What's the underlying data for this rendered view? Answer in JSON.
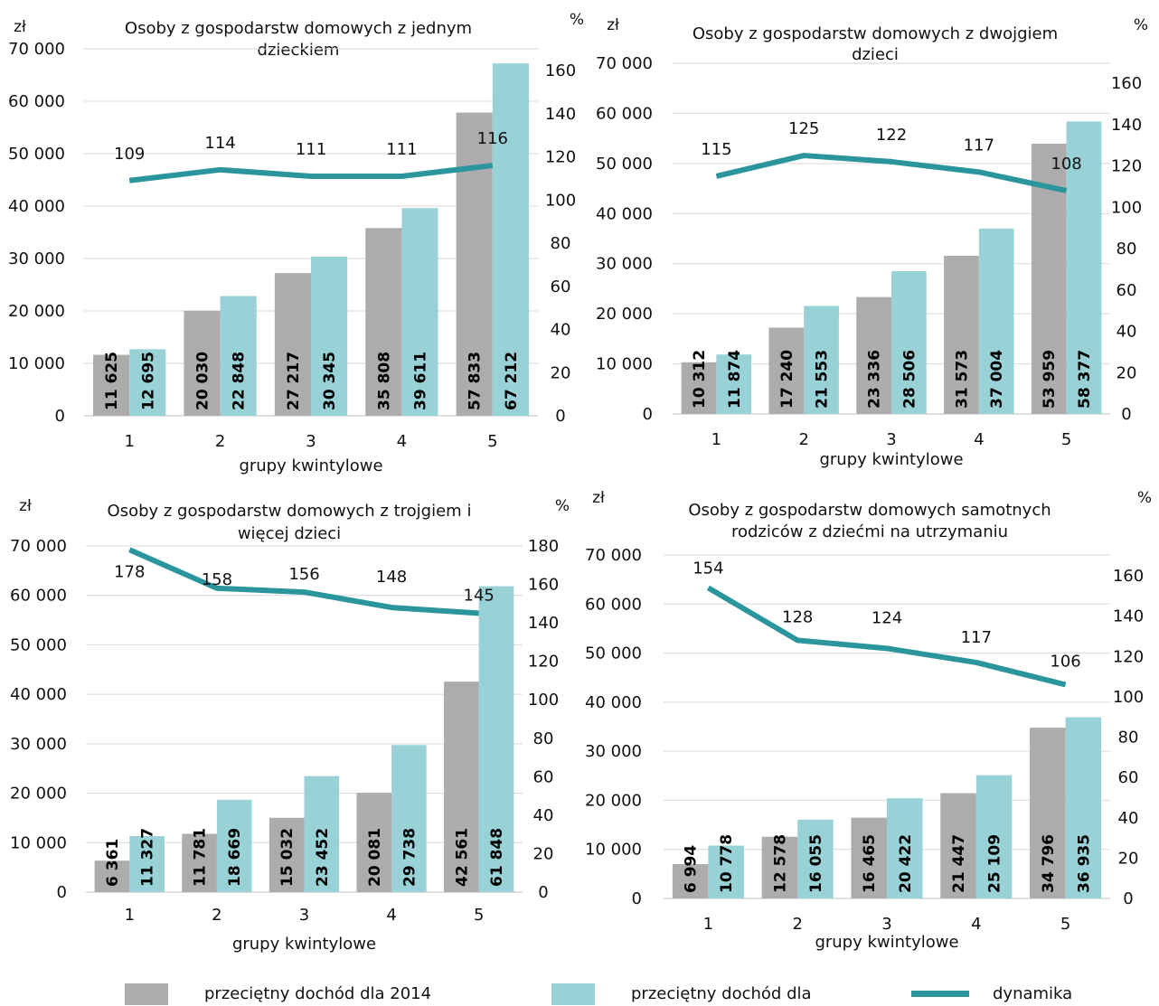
{
  "colors": {
    "income_2014": "#aeabad",
    "income_2018": "#99d2d6",
    "dynamics": "#2a959c",
    "grid": "#d9d9d9",
    "text": "#111111"
  },
  "legend": {
    "income_2014": "przeciętny dochód dla 2014",
    "income_2018": "przeciętny dochód dla",
    "dynamics": "dynamika"
  },
  "chart_data": [
    {
      "type": "bar",
      "title_line1": "Osoby z gospodarstw domowych z jednym",
      "title_line2": "dzieckiem",
      "y_unit_left": "zł",
      "y_unit_right": "%",
      "xlabel": "grupy kwintylowe",
      "categories": [
        "1",
        "2",
        "3",
        "4",
        "5"
      ],
      "ylim": [
        0,
        70000
      ],
      "y2lim": [
        0,
        160
      ],
      "y_ticks": [
        "0",
        "10 000",
        "20 000",
        "30 000",
        "40 000",
        "50 000",
        "60 000",
        "70 000"
      ],
      "y2_ticks": [
        "0",
        "20",
        "40",
        "60",
        "80",
        "100",
        "120",
        "140",
        "160"
      ],
      "series": [
        {
          "values": [
            11625,
            20030,
            27217,
            35808,
            57833
          ],
          "labels": [
            "11 625",
            "20 030",
            "27 217",
            "35 808",
            "57 833"
          ]
        },
        {
          "values": [
            12695,
            22848,
            30345,
            39611,
            67212
          ],
          "labels": [
            "12 695",
            "22 848",
            "30 345",
            "39 611",
            "67 212"
          ]
        }
      ],
      "dynamics": [
        109,
        114,
        111,
        111,
        116
      ]
    },
    {
      "type": "bar",
      "title_line1": "Osoby z gospodarstw domowych z dwojgiem",
      "title_line2": "dzieci",
      "y_unit_left": "zł",
      "y_unit_right": "%",
      "xlabel": "grupy kwintylowe",
      "categories": [
        "1",
        "2",
        "3",
        "4",
        "5"
      ],
      "ylim": [
        0,
        70000
      ],
      "y2lim": [
        0,
        160
      ],
      "y_ticks": [
        "0",
        "10 000",
        "20 000",
        "30 000",
        "40 000",
        "50 000",
        "60 000",
        "70 000"
      ],
      "y2_ticks": [
        "0",
        "20",
        "40",
        "60",
        "80",
        "100",
        "120",
        "140",
        "160"
      ],
      "series": [
        {
          "values": [
            10312,
            17240,
            23336,
            31573,
            53959
          ],
          "labels": [
            "10 312",
            "17 240",
            "23 336",
            "31 573",
            "53 959"
          ]
        },
        {
          "values": [
            11874,
            21553,
            28506,
            37004,
            58377
          ],
          "labels": [
            "11 874",
            "21 553",
            "28 506",
            "37 004",
            "58 377"
          ]
        }
      ],
      "dynamics": [
        115,
        125,
        122,
        117,
        108
      ]
    },
    {
      "type": "bar",
      "title_line1": "Osoby z gospodarstw domowych z trojgiem i",
      "title_line2": "więcej dzieci",
      "y_unit_left": "zł",
      "y_unit_right": "%",
      "xlabel": "grupy kwintylowe",
      "categories": [
        "1",
        "2",
        "3",
        "4",
        "5"
      ],
      "ylim": [
        0,
        70000
      ],
      "y2lim": [
        0,
        180
      ],
      "y_ticks": [
        "0",
        "10 000",
        "20 000",
        "30 000",
        "40 000",
        "50 000",
        "60 000",
        "70 000"
      ],
      "y2_ticks": [
        "0",
        "20",
        "40",
        "60",
        "80",
        "100",
        "120",
        "140",
        "160",
        "180"
      ],
      "series": [
        {
          "values": [
            6361,
            11781,
            15032,
            20081,
            42561
          ],
          "labels": [
            "6 361",
            "11 781",
            "15 032",
            "20 081",
            "42 561"
          ]
        },
        {
          "values": [
            11327,
            18669,
            23452,
            29738,
            61848
          ],
          "labels": [
            "11 327",
            "18 669",
            "23 452",
            "29 738",
            "61 848"
          ]
        }
      ],
      "dynamics": [
        178,
        158,
        156,
        148,
        145
      ]
    },
    {
      "type": "bar",
      "title_line1": "Osoby z gospodarstw domowych samotnych",
      "title_line2": "rodziców z dziećmi na utrzymaniu",
      "y_unit_left": "zł",
      "y_unit_right": "%",
      "xlabel": "grupy kwintylowe",
      "categories": [
        "1",
        "2",
        "3",
        "4",
        "5"
      ],
      "ylim": [
        0,
        70000
      ],
      "y2lim": [
        0,
        160
      ],
      "y_ticks": [
        "0",
        "10 000",
        "20 000",
        "30 000",
        "40 000",
        "50 000",
        "60 000",
        "70 000"
      ],
      "y2_ticks": [
        "0",
        "20",
        "40",
        "60",
        "80",
        "100",
        "120",
        "140",
        "160"
      ],
      "series": [
        {
          "values": [
            6994,
            12578,
            16465,
            21447,
            34796
          ],
          "labels": [
            "6 994",
            "12 578",
            "16 465",
            "21 447",
            "34 796"
          ]
        },
        {
          "values": [
            10778,
            16055,
            20422,
            25109,
            36935
          ],
          "labels": [
            "10 778",
            "16 055",
            "20 422",
            "25 109",
            "36 935"
          ]
        }
      ],
      "dynamics": [
        154,
        128,
        124,
        117,
        106
      ]
    }
  ]
}
